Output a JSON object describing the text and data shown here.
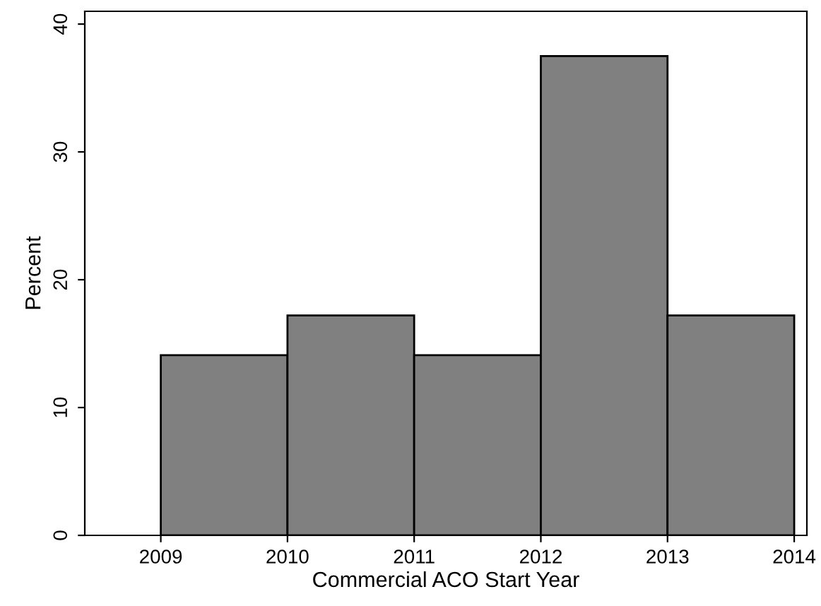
{
  "chart_data": {
    "type": "histogram",
    "xlabel": "Commercial ACO Start Year",
    "ylabel": "Percent",
    "bins": [
      2009,
      2010,
      2011,
      2012,
      2013,
      2014
    ],
    "values": [
      14.1,
      17.2,
      14.1,
      37.5,
      17.2
    ],
    "color": "#808080",
    "xlim": [
      2008.4,
      2014.1
    ],
    "xticks": [
      2009,
      2010,
      2011,
      2012,
      2013,
      2014
    ],
    "ylim": [
      0,
      41
    ],
    "yticks": [
      0,
      10,
      20,
      30,
      40
    ],
    "grid": false
  }
}
